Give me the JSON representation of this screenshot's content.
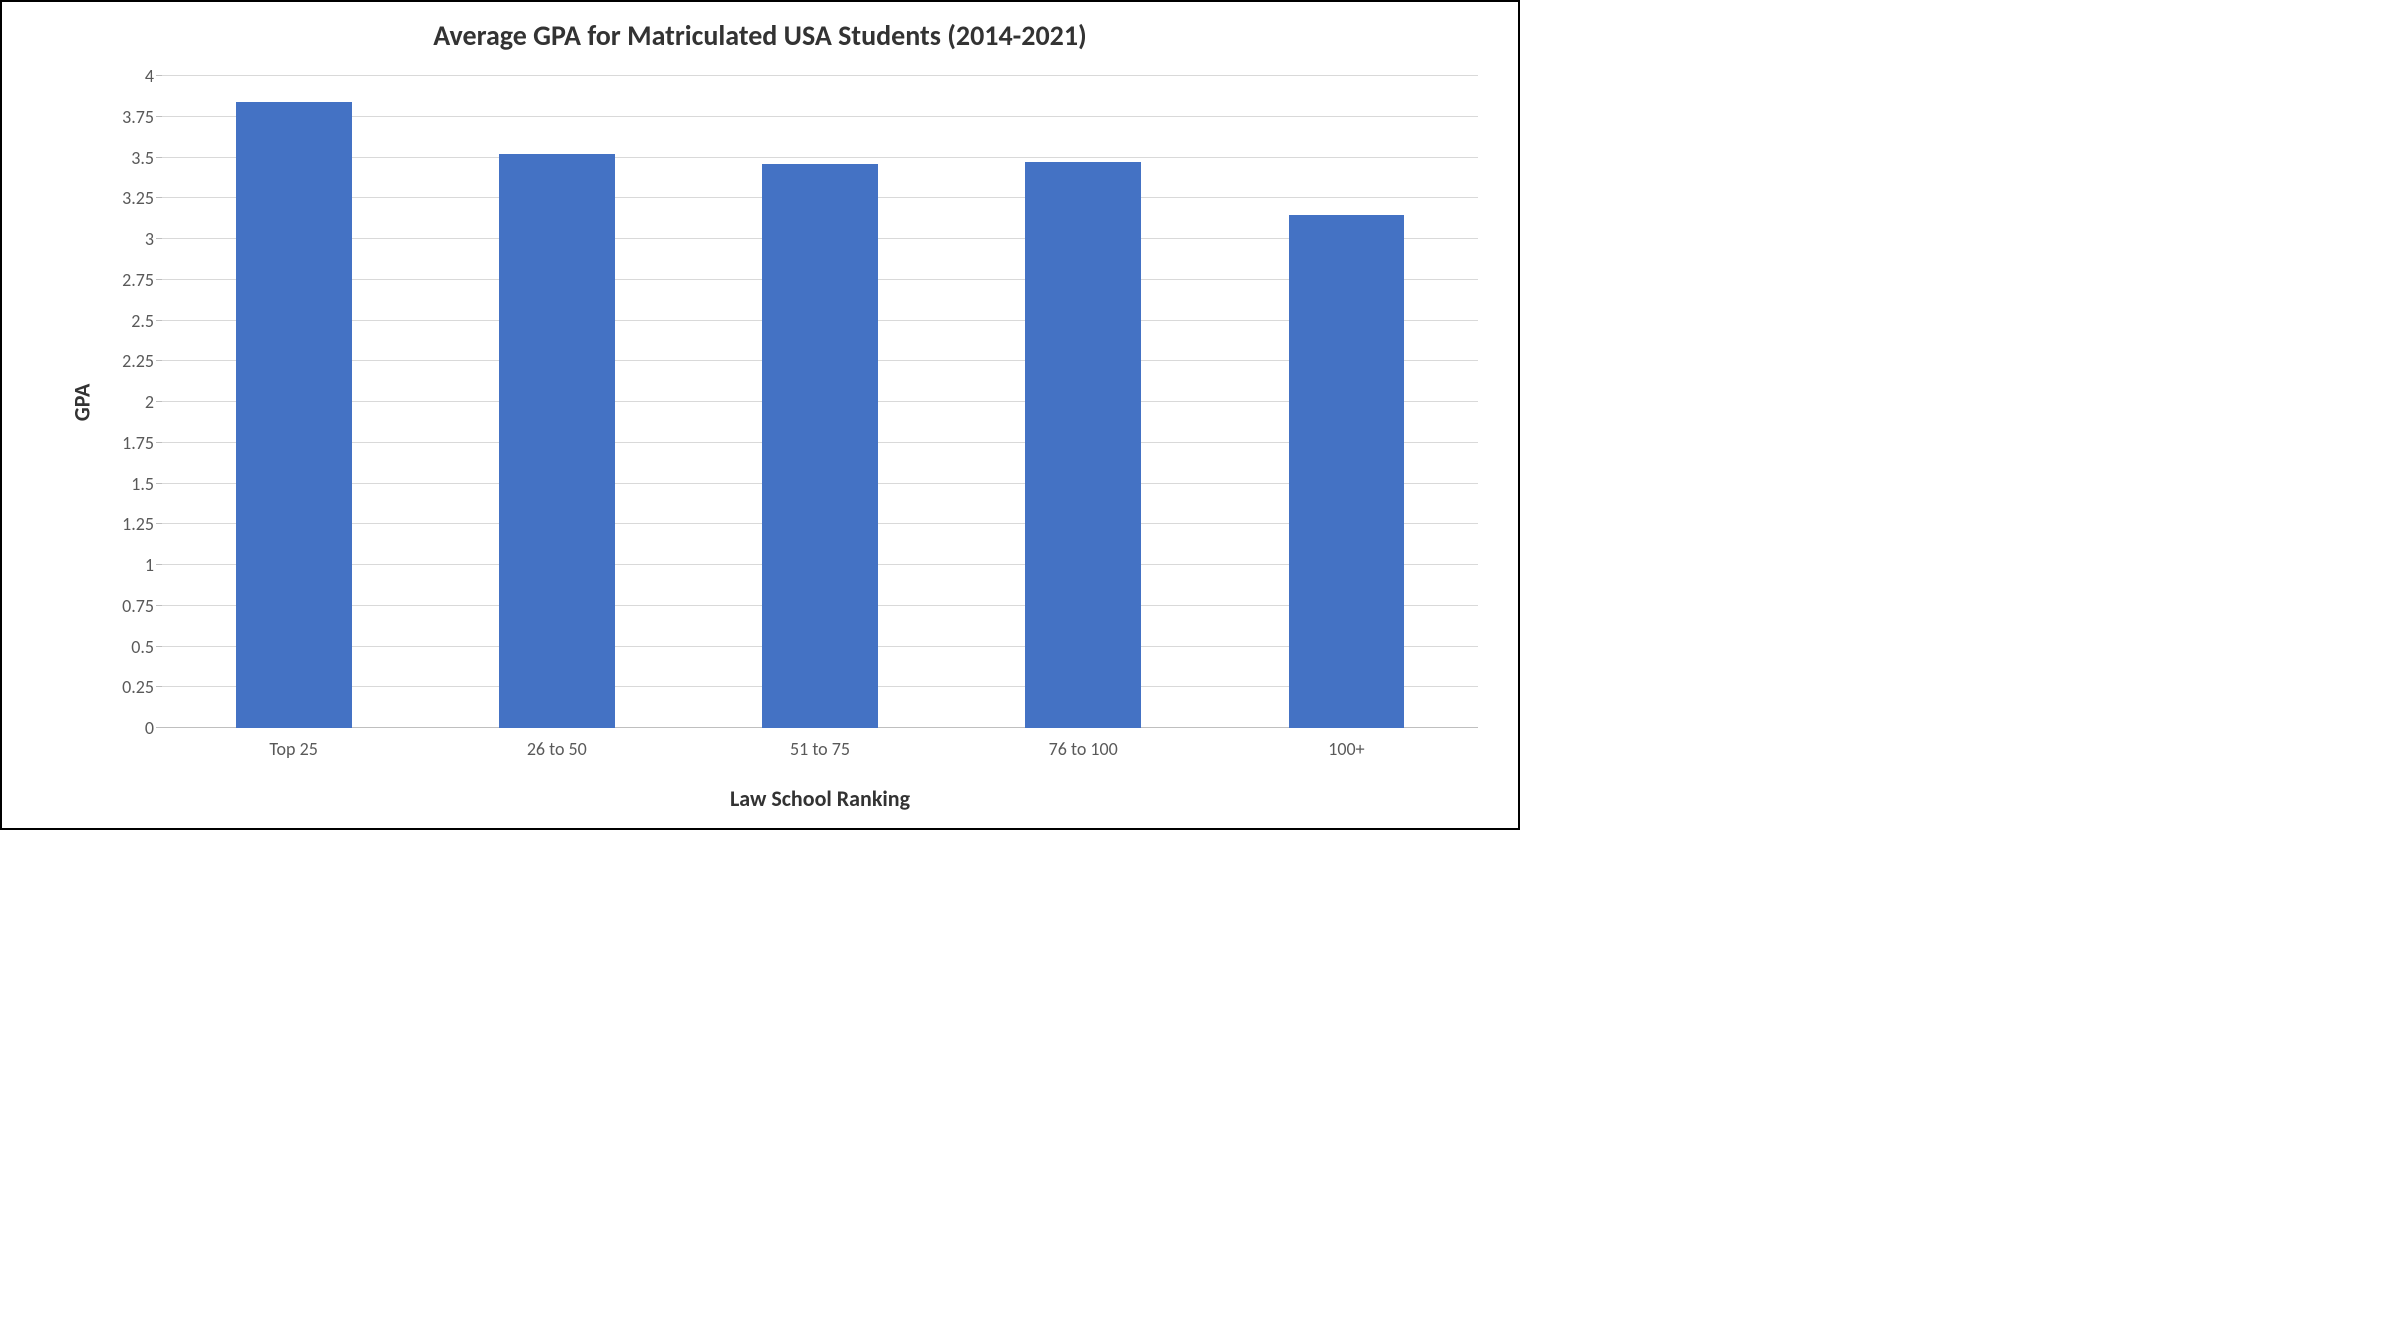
{
  "chart": {
    "type": "bar",
    "title": "Average GPA for Matriculated USA Students (2014-2021)",
    "title_fontsize": 28,
    "title_color": "#333333",
    "x_axis": {
      "title": "Law School Ranking",
      "title_fontsize": 22,
      "categories": [
        "Top 25",
        "26 to 50",
        "51 to 75",
        "76 to 100",
        "100+"
      ],
      "tick_fontsize": 18,
      "tick_color": "#595959"
    },
    "y_axis": {
      "title": "GPA",
      "title_fontsize": 22,
      "min": 0,
      "max": 4,
      "tick_step": 0.25,
      "ticks": [
        0,
        0.25,
        0.5,
        0.75,
        1,
        1.25,
        1.5,
        1.75,
        2,
        2.25,
        2.5,
        2.75,
        3,
        3.25,
        3.5,
        3.75,
        4
      ],
      "tick_fontsize": 18,
      "tick_color": "#595959"
    },
    "series": {
      "values": [
        3.84,
        3.52,
        3.46,
        3.47,
        3.15
      ],
      "bar_color": "#4472c4",
      "bar_width_fraction": 0.44
    },
    "style": {
      "background_color": "#ffffff",
      "grid_color": "#d9d9d9",
      "baseline_color": "#bfbfbf",
      "frame_border_color": "#000000"
    }
  }
}
